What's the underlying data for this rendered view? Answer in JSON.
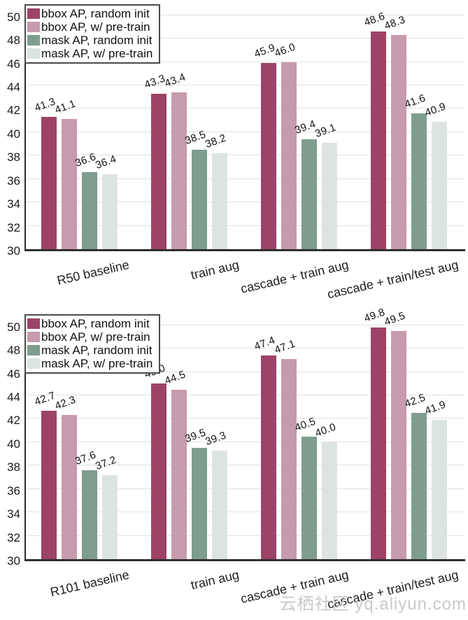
{
  "watermark": {
    "text": "云栖社区 yq.aliyun.com"
  },
  "colors": {
    "bbox_random_init": "#9d4367",
    "bbox_pretrain": "#c79aad",
    "mask_random_init": "#7f9d8e",
    "mask_pretrain": "#dce4e1",
    "axis": "#2e2e2e",
    "gridline": "#e3e3e3"
  },
  "chart_data": [
    {
      "type": "bar",
      "title": "",
      "xlabel": "",
      "ylabel": "",
      "categories": [
        "R50 baseline",
        "train aug",
        "cascade + train aug",
        "cascade + train/test aug"
      ],
      "series": [
        {
          "name": "bbox AP, random init",
          "color": "#9d4367",
          "values": [
            41.3,
            43.3,
            45.9,
            48.6
          ]
        },
        {
          "name": "bbox AP, w/ pre-train",
          "color": "#c79aad",
          "values": [
            41.1,
            43.4,
            46.0,
            48.3
          ]
        },
        {
          "name": "mask AP, random init",
          "color": "#7f9d8e",
          "values": [
            36.6,
            38.5,
            39.4,
            41.6
          ]
        },
        {
          "name": "mask AP, w/ pre-train",
          "color": "#dce4e1",
          "values": [
            36.4,
            38.2,
            39.1,
            40.9
          ]
        }
      ],
      "ylim": [
        30,
        51
      ],
      "yticks": [
        30,
        32,
        34,
        36,
        38,
        40,
        42,
        44,
        46,
        48,
        50
      ],
      "grid": true,
      "legend_position": "top-left",
      "value_labels": true
    },
    {
      "type": "bar",
      "title": "",
      "xlabel": "",
      "ylabel": "",
      "categories": [
        "R101 baseline",
        "train aug",
        "cascade + train aug",
        "cascade + train/test aug"
      ],
      "series": [
        {
          "name": "bbox AP, random init",
          "color": "#9d4367",
          "values": [
            42.7,
            45.0,
            47.4,
            49.8
          ]
        },
        {
          "name": "bbox AP, w/ pre-train",
          "color": "#c79aad",
          "values": [
            42.3,
            44.5,
            47.1,
            49.5
          ]
        },
        {
          "name": "mask AP, random init",
          "color": "#7f9d8e",
          "values": [
            37.6,
            39.5,
            40.5,
            42.5
          ]
        },
        {
          "name": "mask AP, w/ pre-train",
          "color": "#dce4e1",
          "values": [
            37.2,
            39.3,
            40.0,
            41.9
          ]
        }
      ],
      "ylim": [
        30,
        51
      ],
      "yticks": [
        30,
        32,
        34,
        36,
        38,
        40,
        42,
        44,
        46,
        48,
        50
      ],
      "grid": true,
      "legend_position": "top-left",
      "value_labels": true
    }
  ]
}
